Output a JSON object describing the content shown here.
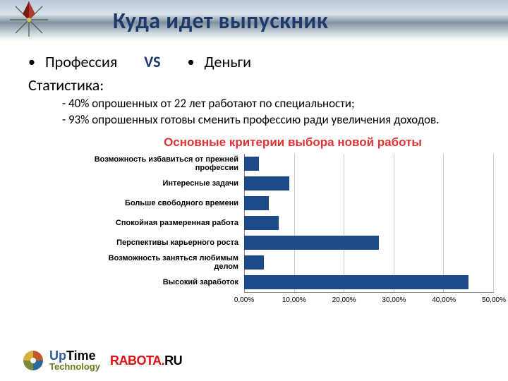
{
  "title": "Куда идет выпускник",
  "compare": {
    "left": "Профессия",
    "vs": "VS",
    "right": "Деньги"
  },
  "stat_head": "Статистика:",
  "stat_lines": [
    "- 40% опрошенных от 22 лет работают по специальности;",
    "- 93% опрошенных готовы сменить профессию ради увеличения доходов."
  ],
  "chart": {
    "type": "bar-horizontal",
    "title": "Основные критерии выбора новой работы",
    "title_color": "#d33333",
    "title_fontsize": 17,
    "label_fontsize": 11,
    "label_fontweight": "bold",
    "bar_color": "#1e4a8a",
    "grid_color": "#c8c8c8",
    "axis_color": "#888888",
    "background_color": "#ffffff",
    "bar_height_ratio": 0.72,
    "xlim": [
      0,
      50
    ],
    "xtick_step": 10,
    "xtick_format": "percent_comma_2dp",
    "xticks": [
      "0,00%",
      "10,00%",
      "20,00%",
      "30,00%",
      "40,00%",
      "50,00%"
    ],
    "categories": [
      "Возможность избавиться от прежней профессии",
      "Интересные задачи",
      "Больше свободного времени",
      "Спокойная размеренная работа",
      "Перспективы карьерного роста",
      "Возможность заняться любимым делом",
      "Высокий заработок"
    ],
    "values": [
      3,
      9,
      5,
      7,
      27,
      4,
      45
    ]
  },
  "logos": {
    "uptime_top": "UpTime",
    "uptime_up_color": "#2c5a9a",
    "uptime_bot": "Technology",
    "rabota": "RABOTA.",
    "rabota_ru": "RU"
  }
}
